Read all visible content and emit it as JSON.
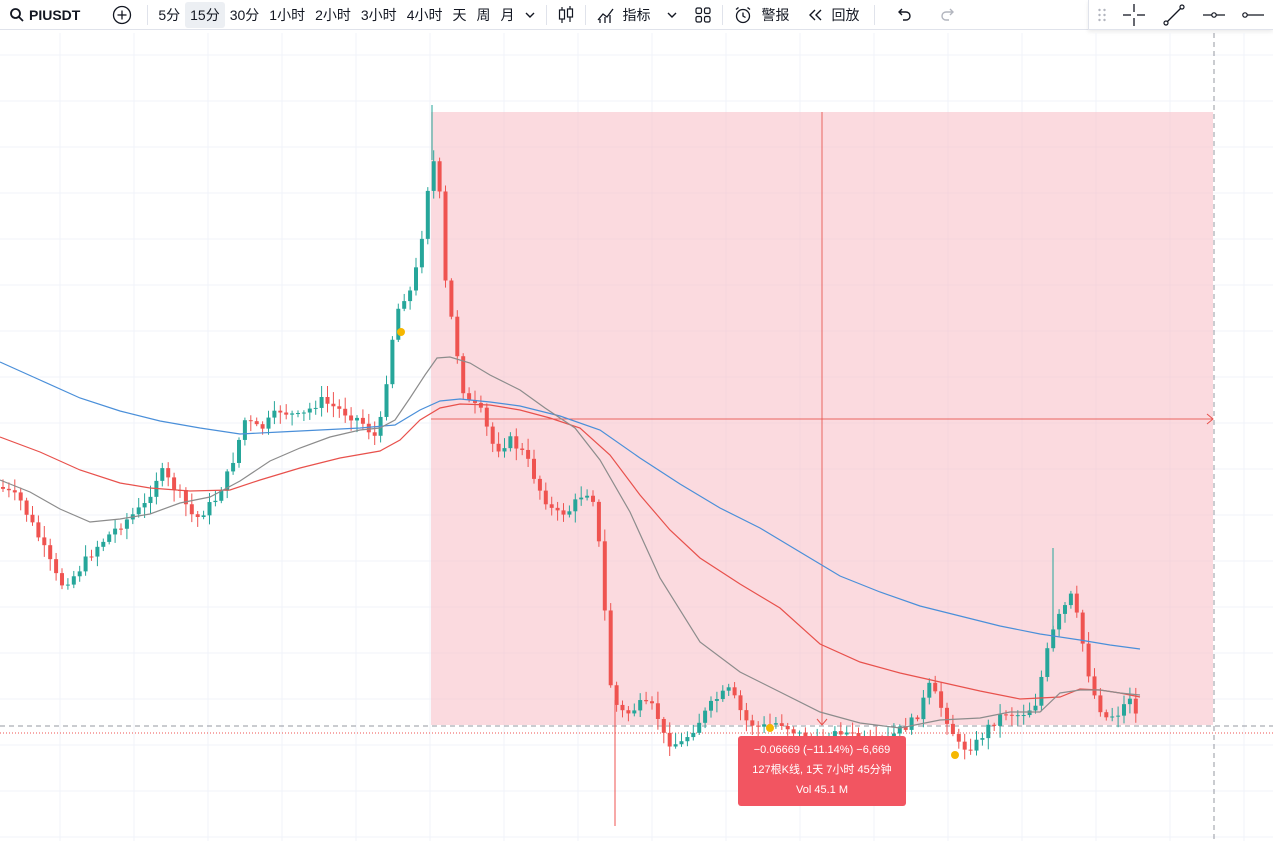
{
  "toolbar": {
    "symbol": "PIUSDT",
    "intervals": [
      "5分",
      "15分",
      "30分",
      "1小时",
      "2小时",
      "3小时",
      "4小时",
      "天",
      "周",
      "月"
    ],
    "active_interval": "15分",
    "indicators_label": "指标",
    "alert_label": "警报",
    "replay_label": "回放"
  },
  "tooltip": {
    "line1": "−0.06669 (−11.14%) −6,669",
    "line2": "127根K线, 1天 7小时 45分钟",
    "line3": "Vol 45.1 M"
  },
  "colors": {
    "up": "#26a69a",
    "down": "#ef5350",
    "range_fill": "#f7bcc5",
    "ma_fast": "#8c8c8c",
    "ma_mid": "#e8514c",
    "ma_slow": "#4a8fd9",
    "tooltip_bg": "#f25561"
  },
  "icons": {
    "search": "search-icon",
    "add": "plus-circle-icon",
    "chevron": "chevron-down-icon",
    "candles": "candlestick-icon",
    "indicators": "indicators-icon",
    "layout": "grid-icon",
    "alert": "alarm-clock-icon",
    "replay": "rewind-icon",
    "undo": "undo-icon",
    "redo": "redo-icon",
    "drag": "drag-handle-icon",
    "crosshair": "crosshair-icon",
    "trend": "trend-line-icon",
    "hline": "horizontal-ray-icon",
    "ray": "ray-icon"
  }
}
